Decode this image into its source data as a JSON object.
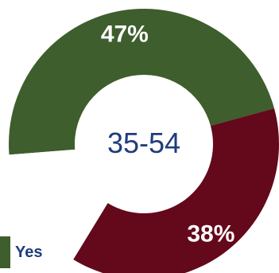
{
  "chart_data": {
    "type": "pie",
    "center_label": "35-54",
    "slices": [
      {
        "name": "Yes",
        "value": 47,
        "label": "47%",
        "color": "#3e5e2d"
      },
      {
        "name": "",
        "value": 38,
        "label": "38%",
        "color": "#63091b"
      },
      {
        "name": "",
        "value": 15,
        "label": "",
        "color": "#ffffff"
      }
    ],
    "legend": [
      {
        "label": "Yes",
        "color": "#3e5e2d"
      }
    ],
    "legend_position": "bottom-left"
  },
  "colors": {
    "label_text": "#ffffff",
    "center_text": "#1f3d7a",
    "legend_text": "#1f3d7a"
  }
}
